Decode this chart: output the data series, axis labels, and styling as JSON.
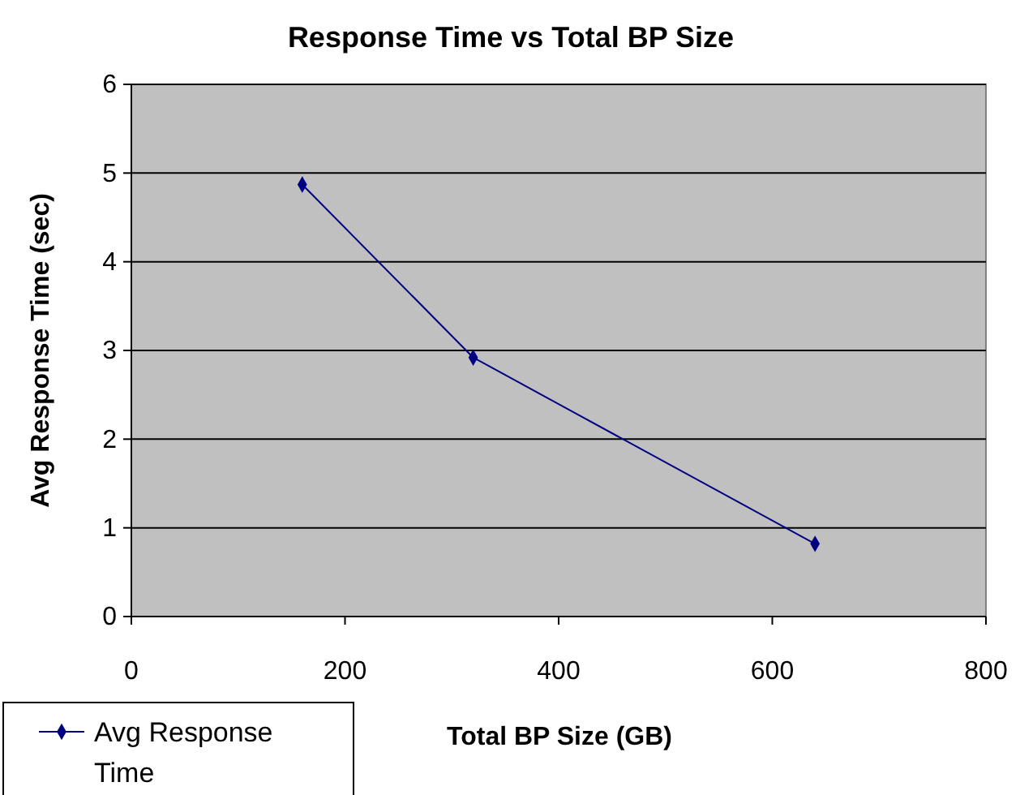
{
  "chart_data": {
    "type": "line",
    "title": "Response Time  vs  Total BP Size",
    "xlabel": "Total BP Size (GB)",
    "ylabel": "Avg Response Time (sec)",
    "x": [
      160,
      320,
      640
    ],
    "series": [
      {
        "name": "Avg Response Time",
        "color": "#000080",
        "values": [
          4.87,
          2.92,
          0.82
        ]
      }
    ],
    "xlim": [
      0,
      800
    ],
    "xticks": [
      0,
      200,
      400,
      600,
      800
    ],
    "ylim": [
      0,
      6
    ],
    "yticks": [
      0,
      1,
      2,
      3,
      4,
      5,
      6
    ],
    "grid": "y",
    "legend": "bottom left",
    "marker": "diamond"
  }
}
